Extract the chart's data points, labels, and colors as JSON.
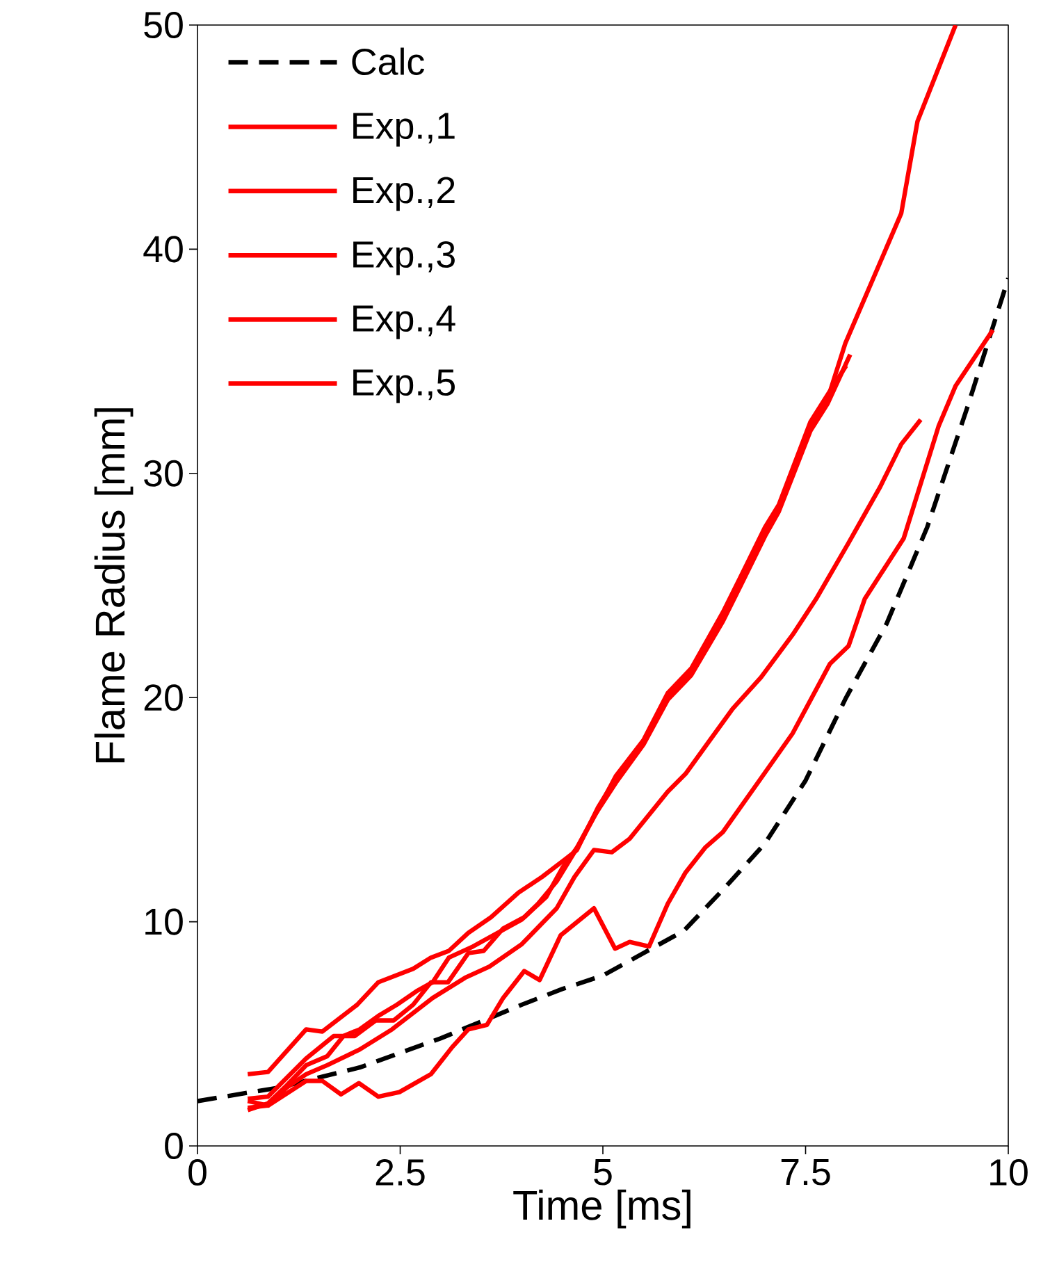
{
  "chart_data": {
    "type": "line",
    "xlabel": "Time [ms]",
    "ylabel": "Flame Radius [mm]",
    "xlim": [
      0,
      10
    ],
    "ylim": [
      0,
      50
    ],
    "xticks": [
      0,
      2.5,
      5,
      7.5,
      10
    ],
    "yticks": [
      0,
      10,
      20,
      30,
      40,
      50
    ],
    "legend": "top left",
    "grid": false,
    "series": [
      {
        "name": "Calc",
        "color": "#000000",
        "line_style": "dashed",
        "x": [
          0,
          1,
          2,
          3,
          4,
          4.5,
          5,
          5.5,
          6,
          6.5,
          7,
          7.5,
          8,
          8.5,
          9,
          9.5,
          10
        ],
        "values": [
          2,
          2.6,
          3.5,
          4.8,
          6.3,
          7.0,
          7.6,
          8.6,
          9.6,
          11.5,
          13.5,
          16.3,
          20,
          23.3,
          27.6,
          33,
          38.7
        ]
      },
      {
        "name": "Exp.,1",
        "color": "#ff0000",
        "line_style": "solid",
        "x": [
          0.62,
          0.87,
          1.34,
          1.54,
          1.97,
          2.23,
          2.66,
          2.88,
          3.1,
          3.34,
          3.62,
          3.96,
          4.25,
          4.54,
          4.68,
          4.94,
          5.16,
          5.5,
          5.8,
          6.09,
          6.48,
          6.7,
          7.0,
          7.17,
          7.56,
          7.77,
          7.99,
          8.68,
          8.88,
          9.35
        ],
        "values": [
          3.2,
          3.3,
          5.2,
          5.1,
          6.3,
          7.3,
          7.9,
          8.4,
          8.7,
          9.5,
          10.2,
          11.3,
          12.0,
          12.8,
          13.2,
          15.1,
          16.4,
          18.0,
          20.1,
          21.1,
          23.6,
          25.2,
          27.4,
          28.4,
          32.1,
          33.3,
          35.8,
          41.6,
          45.7,
          50
        ]
      },
      {
        "name": "Exp.,2",
        "color": "#ff0000",
        "line_style": "solid",
        "x": [
          0.62,
          0.87,
          1.34,
          1.68,
          1.94,
          2.2,
          2.42,
          2.66,
          2.88,
          3.09,
          3.34,
          3.53,
          3.77,
          4.03,
          4.2,
          4.43,
          4.65,
          4.89,
          5.16,
          5.5,
          5.8,
          6.09,
          6.48,
          6.7,
          7.0,
          7.17,
          7.56,
          7.77,
          8.05
        ],
        "values": [
          2.1,
          2.2,
          3.9,
          4.9,
          4.9,
          5.6,
          5.6,
          6.3,
          7.3,
          7.3,
          8.6,
          8.7,
          9.7,
          10.2,
          10.8,
          11.8,
          13.1,
          14.7,
          16.2,
          17.9,
          19.9,
          21.0,
          23.4,
          25.0,
          27.2,
          28.3,
          31.9,
          33.1,
          35.3
        ]
      },
      {
        "name": "Exp.,3",
        "color": "#ff0000",
        "line_style": "solid",
        "x": [
          0.62,
          0.87,
          1.1,
          1.34,
          1.6,
          1.8,
          2.0,
          2.23,
          2.46,
          2.7,
          2.9,
          3.1,
          3.4,
          3.75,
          4.0,
          4.3,
          4.5,
          4.7,
          4.94,
          5.16,
          5.5,
          5.8,
          6.09,
          6.48,
          6.7,
          7.0,
          7.17,
          7.56,
          7.77,
          8.0
        ],
        "values": [
          1.6,
          1.9,
          2.7,
          3.6,
          4.0,
          4.9,
          5.2,
          5.8,
          6.3,
          6.9,
          7.3,
          8.4,
          8.9,
          9.6,
          10.1,
          11.1,
          12.4,
          13.4,
          15.0,
          16.5,
          18.1,
          20.2,
          21.3,
          23.8,
          25.4,
          27.6,
          28.6,
          32.3,
          33.5,
          34.8
        ]
      },
      {
        "name": "Exp.,4",
        "color": "#ff0000",
        "line_style": "solid",
        "x": [
          0.62,
          0.87,
          1.1,
          1.34,
          1.6,
          2.0,
          2.4,
          2.9,
          3.3,
          3.6,
          4.0,
          4.43,
          4.65,
          4.89,
          5.11,
          5.33,
          5.8,
          6.02,
          6.6,
          6.95,
          7.34,
          7.63,
          8.03,
          8.42,
          8.68,
          8.92
        ],
        "values": [
          2.0,
          1.8,
          2.6,
          3.2,
          3.6,
          4.3,
          5.2,
          6.6,
          7.5,
          8.0,
          9.0,
          10.6,
          12.0,
          13.2,
          13.1,
          13.7,
          15.8,
          16.6,
          19.5,
          20.9,
          22.8,
          24.4,
          26.9,
          29.4,
          31.3,
          32.4
        ]
      },
      {
        "name": "Exp.,5",
        "color": "#ff0000",
        "line_style": "solid",
        "x": [
          0.62,
          0.87,
          1.34,
          1.54,
          1.77,
          1.99,
          2.23,
          2.49,
          2.88,
          3.14,
          3.34,
          3.57,
          3.77,
          4.03,
          4.22,
          4.48,
          4.89,
          5.15,
          5.33,
          5.57,
          5.8,
          6.02,
          6.26,
          6.48,
          6.95,
          7.34,
          7.8,
          8.03,
          8.23,
          8.71,
          9.14,
          9.35,
          9.81
        ],
        "values": [
          1.7,
          1.8,
          2.9,
          2.9,
          2.3,
          2.8,
          2.2,
          2.4,
          3.2,
          4.4,
          5.2,
          5.4,
          6.6,
          7.8,
          7.4,
          9.4,
          10.6,
          8.8,
          9.1,
          8.9,
          10.8,
          12.2,
          13.3,
          14.0,
          16.4,
          18.4,
          21.5,
          22.3,
          24.4,
          27.1,
          32.1,
          33.9,
          36.4
        ]
      }
    ]
  }
}
